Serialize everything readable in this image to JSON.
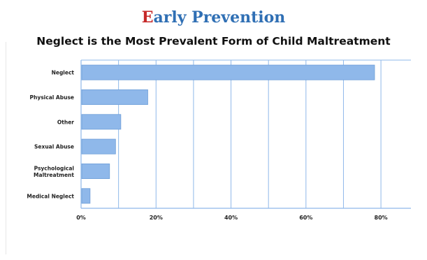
{
  "header": {
    "title_first_letter": "E",
    "title_rest": "arly Prevention",
    "subtitle": "Neglect is the Most Prevalent Form of Child Maltreatment"
  },
  "colors": {
    "bar": "#8fb8ea",
    "bar_stroke": "#6f9fd8",
    "grid": "#8fb8ea",
    "title_red": "#c62828",
    "title_blue": "#2f6fb4"
  },
  "chart_data": {
    "type": "bar",
    "orientation": "horizontal",
    "categories": [
      "Neglect",
      "Physical Abuse",
      "Other",
      "Sexual Abuse",
      "Psychological Maltreatment",
      "Medical Neglect"
    ],
    "category_label_lines": [
      [
        "Neglect"
      ],
      [
        "Physical Abuse"
      ],
      [
        "Other"
      ],
      [
        "Sexual Abuse"
      ],
      [
        "Psychological",
        "Maltreatment"
      ],
      [
        "Medical Neglect"
      ]
    ],
    "values": [
      78.3,
      17.8,
      10.6,
      9.2,
      7.6,
      2.4
    ],
    "xlim": [
      0,
      88
    ],
    "xticks": [
      0,
      20,
      40,
      60,
      80
    ],
    "xtick_labels": [
      "0%",
      "20%",
      "40%",
      "60%",
      "80%"
    ],
    "gridlines_every": 10,
    "grid": true,
    "title": "Neglect is the Most Prevalent Form of Child Maltreatment",
    "xlabel": "",
    "ylabel": ""
  }
}
